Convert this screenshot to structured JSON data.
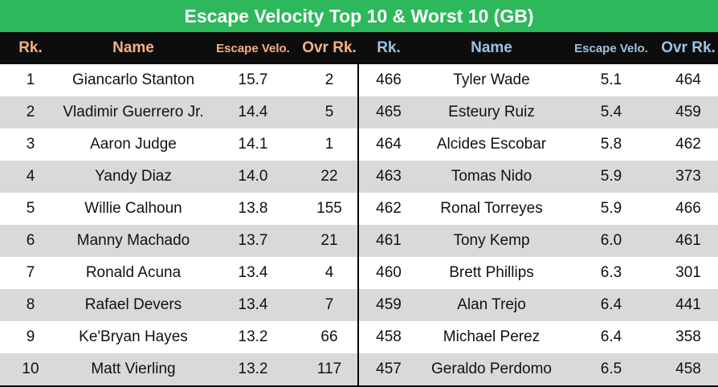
{
  "title": "Escape Velocity Top 10 & Worst 10 (GB)",
  "left": {
    "headers": [
      "Rk.",
      "Name",
      "Escape Velo.",
      "Ovr Rk."
    ],
    "rows": [
      [
        "1",
        "Giancarlo Stanton",
        "15.7",
        "2"
      ],
      [
        "2",
        "Vladimir Guerrero Jr.",
        "14.4",
        "5"
      ],
      [
        "3",
        "Aaron Judge",
        "14.1",
        "1"
      ],
      [
        "4",
        "Yandy Diaz",
        "14.0",
        "22"
      ],
      [
        "5",
        "Willie Calhoun",
        "13.8",
        "155"
      ],
      [
        "6",
        "Manny Machado",
        "13.7",
        "21"
      ],
      [
        "7",
        "Ronald Acuna",
        "13.4",
        "4"
      ],
      [
        "8",
        "Rafael Devers",
        "13.4",
        "7"
      ],
      [
        "9",
        "Ke'Bryan Hayes",
        "13.2",
        "66"
      ],
      [
        "10",
        "Matt Vierling",
        "13.2",
        "117"
      ]
    ]
  },
  "right": {
    "headers": [
      "Rk.",
      "Name",
      "Escape Velo.",
      "Ovr Rk."
    ],
    "rows": [
      [
        "466",
        "Tyler Wade",
        "5.1",
        "464"
      ],
      [
        "465",
        "Esteury Ruiz",
        "5.4",
        "459"
      ],
      [
        "464",
        "Alcides Escobar",
        "5.8",
        "462"
      ],
      [
        "463",
        "Tomas Nido",
        "5.9",
        "373"
      ],
      [
        "462",
        "Ronal Torreyes",
        "5.9",
        "466"
      ],
      [
        "461",
        "Tony Kemp",
        "6.0",
        "461"
      ],
      [
        "460",
        "Brett Phillips",
        "6.3",
        "301"
      ],
      [
        "459",
        "Alan Trejo",
        "6.4",
        "441"
      ],
      [
        "458",
        "Michael Perez",
        "6.4",
        "358"
      ],
      [
        "457",
        "Geraldo Perdomo",
        "6.5",
        "458"
      ]
    ]
  }
}
